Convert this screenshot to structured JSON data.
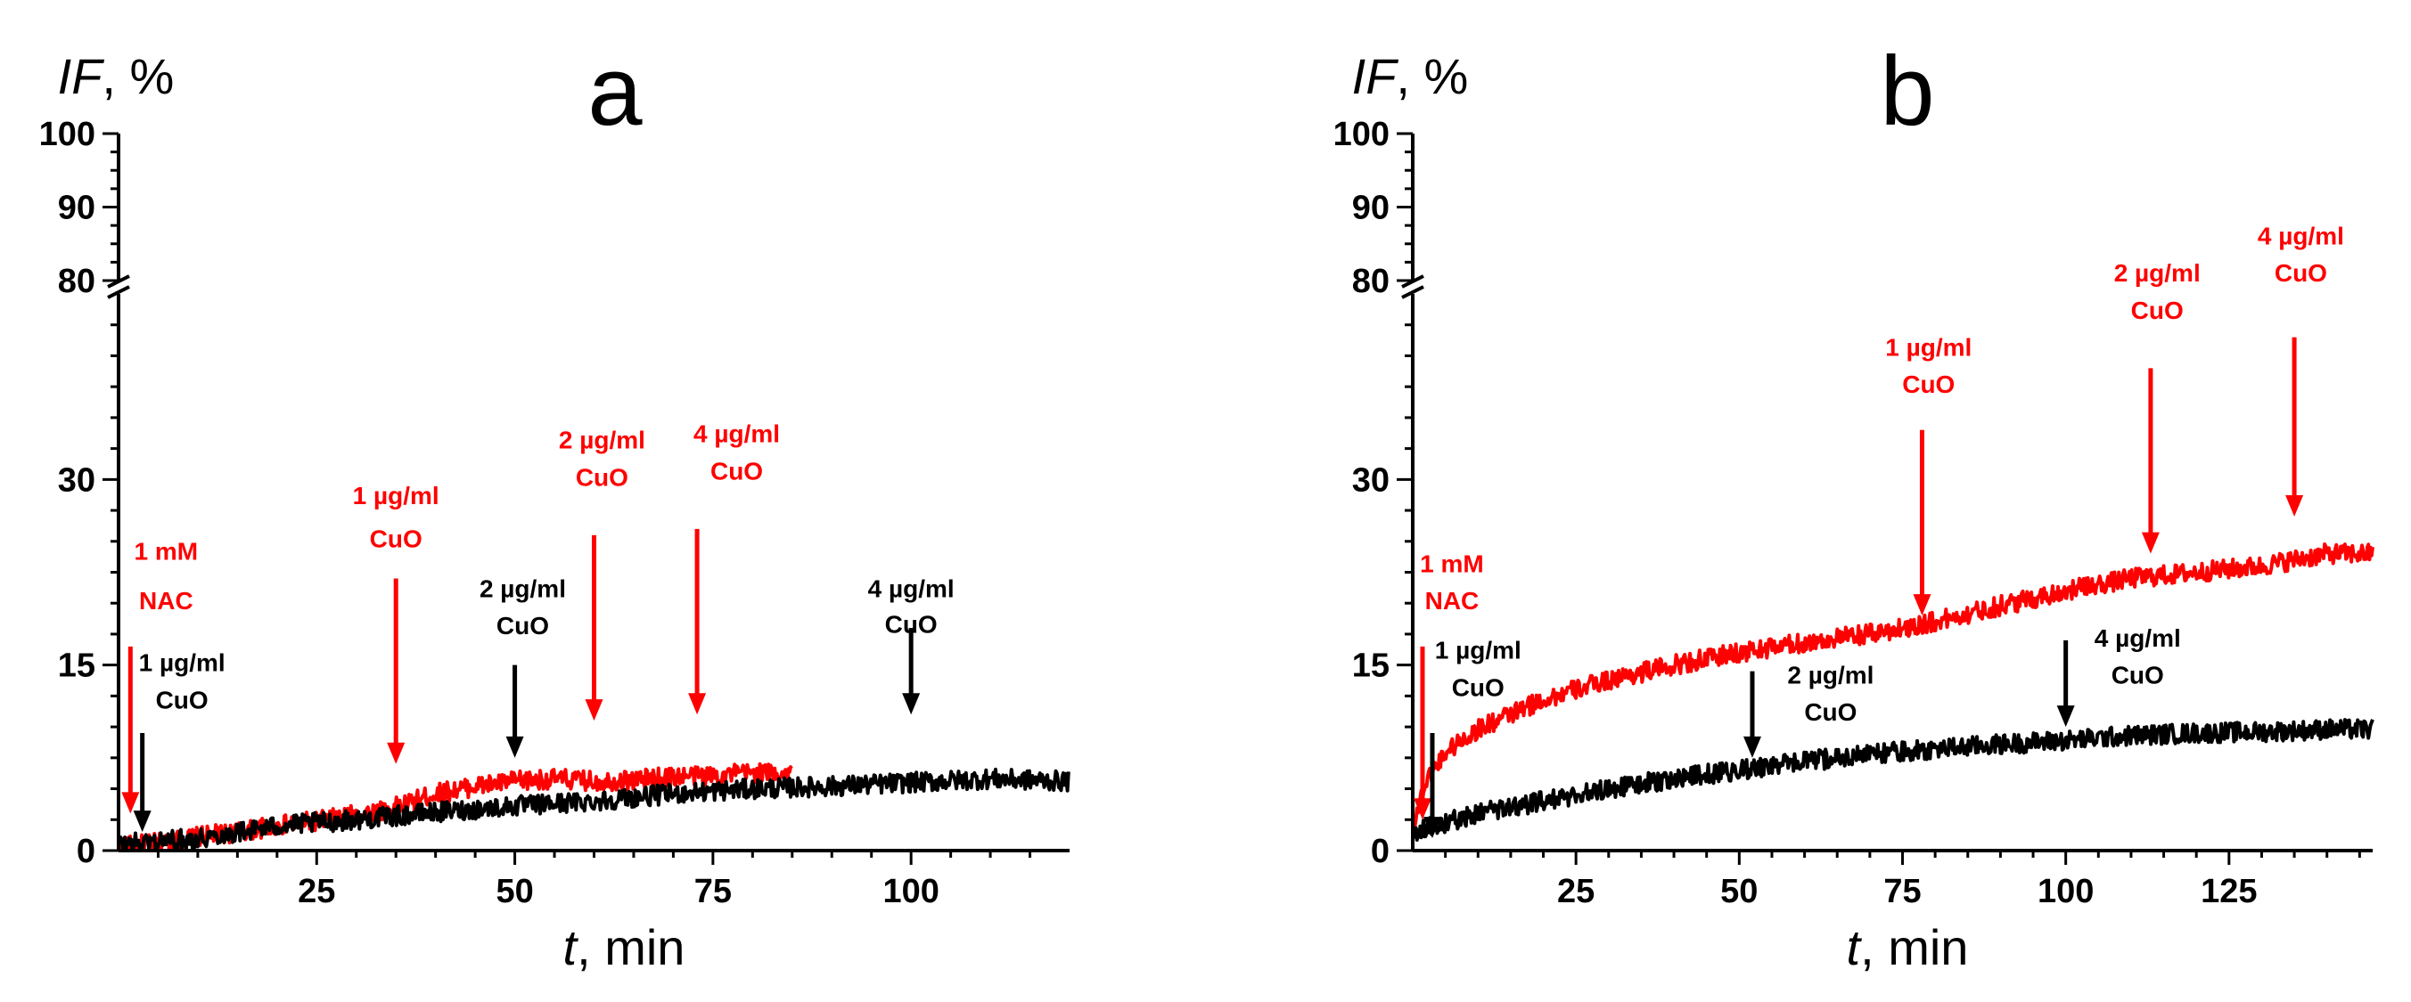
{
  "chart_data": [
    {
      "panel": "a",
      "type": "line",
      "title": "a",
      "xlabel_italic": "t",
      "xlabel_rest": ", min",
      "ylabel_italic": "IF",
      "ylabel_rest": ", %",
      "xlim": [
        0,
        120
      ],
      "ylim_lower": [
        0,
        45
      ],
      "ylim_upper": [
        80,
        100
      ],
      "xticks": [
        25,
        50,
        75,
        100
      ],
      "yticks_lower": [
        0,
        15,
        30
      ],
      "yticks_upper": [
        80,
        90,
        100
      ],
      "axis_break": true,
      "series": [
        {
          "name": "red",
          "color": "#ff0000",
          "x": [
            0,
            5,
            10,
            15,
            20,
            25,
            30,
            35,
            40,
            45,
            50,
            55,
            60,
            65,
            70,
            75,
            80,
            85
          ],
          "y": [
            0.3,
            0.6,
            1.1,
            1.5,
            2.0,
            2.4,
            2.9,
            3.5,
            4.6,
            5.2,
            5.6,
            5.8,
            5.6,
            5.7,
            6.0,
            6.1,
            6.3,
            6.2
          ]
        },
        {
          "name": "black",
          "color": "#000000",
          "x": [
            0,
            10,
            20,
            30,
            40,
            50,
            60,
            70,
            80,
            90,
            100,
            110,
            120
          ],
          "y": [
            0.5,
            1.0,
            2.0,
            2.5,
            3.1,
            3.6,
            4.0,
            4.6,
            5.0,
            5.2,
            5.5,
            5.8,
            5.6
          ]
        }
      ],
      "annotations": [
        {
          "lines": [
            "1 mM",
            "NAC"
          ],
          "color": "#ff0000",
          "x": 1.5,
          "arrow_top": 16.5,
          "arrow_bottom": 3.0,
          "label_y": [
            23.5,
            19.5
          ],
          "label_x": 6
        },
        {
          "lines": [
            "1 µg/ml",
            "CuO"
          ],
          "color": "#000000",
          "x": 3,
          "arrow_top": 9.5,
          "arrow_bottom": 1.5,
          "label_y": [
            14.5,
            11.5
          ],
          "label_x": 8
        },
        {
          "lines": [
            "1 µg/ml",
            "CuO"
          ],
          "color": "#ff0000",
          "x": 35,
          "arrow_top": 22.0,
          "arrow_bottom": 7.0,
          "label_y": [
            28.0,
            24.5
          ],
          "label_x": 35
        },
        {
          "lines": [
            "2 µg/ml",
            "CuO"
          ],
          "color": "#000000",
          "x": 50,
          "arrow_top": 15.0,
          "arrow_bottom": 7.5,
          "label_y": [
            20.5,
            17.5
          ],
          "label_x": 51
        },
        {
          "lines": [
            "2 µg/ml",
            "CuO"
          ],
          "color": "#ff0000",
          "x": 60,
          "arrow_top": 25.5,
          "arrow_bottom": 10.5,
          "label_y": [
            32.5,
            29.5
          ],
          "label_x": 61
        },
        {
          "lines": [
            "4 µg/ml",
            "CuO"
          ],
          "color": "#ff0000",
          "x": 73,
          "arrow_top": 26.0,
          "arrow_bottom": 11.0,
          "label_y": [
            33.0,
            30.0
          ],
          "label_x": 78
        },
        {
          "lines": [
            "4 µg/ml",
            "CuO"
          ],
          "color": "#000000",
          "x": 100,
          "arrow_top": 18.0,
          "arrow_bottom": 11.0,
          "label_y": [
            20.5,
            20.5
          ],
          "label_x": 100
        }
      ]
    },
    {
      "panel": "b",
      "type": "line",
      "title": "b",
      "xlabel_italic": "t",
      "xlabel_rest": ", min",
      "ylabel_italic": "IF",
      "ylabel_rest": ", %",
      "xlim": [
        0,
        147
      ],
      "ylim_lower": [
        0,
        45
      ],
      "ylim_upper": [
        80,
        100
      ],
      "xticks": [
        25,
        50,
        75,
        100,
        125
      ],
      "yticks_lower": [
        0,
        15,
        30
      ],
      "yticks_upper": [
        80,
        90,
        100
      ],
      "axis_break": true,
      "series": [
        {
          "name": "red",
          "color": "#ff0000",
          "x": [
            0,
            2,
            5,
            10,
            15,
            20,
            30,
            40,
            50,
            60,
            70,
            80,
            90,
            100,
            110,
            120,
            130,
            140,
            147
          ],
          "y": [
            2.0,
            5.5,
            8.0,
            9.8,
            11.0,
            12.2,
            13.8,
            15.0,
            16.0,
            16.8,
            17.5,
            18.5,
            19.8,
            21.0,
            22.0,
            22.5,
            23.0,
            24.0,
            24.0
          ]
        },
        {
          "name": "black",
          "color": "#000000",
          "x": [
            0,
            10,
            20,
            30,
            40,
            50,
            60,
            70,
            80,
            90,
            100,
            110,
            120,
            130,
            140,
            147
          ],
          "y": [
            1.5,
            3.0,
            4.0,
            5.0,
            5.8,
            6.5,
            7.2,
            7.8,
            8.2,
            8.6,
            8.9,
            9.3,
            9.5,
            9.6,
            9.8,
            9.8
          ]
        }
      ],
      "annotations": [
        {
          "lines": [
            "1 mM",
            "NAC"
          ],
          "color": "#ff0000",
          "x": 1.5,
          "arrow_top": 16.5,
          "arrow_bottom": 2.5,
          "label_y": [
            22.5,
            19.5
          ],
          "label_x": 6
        },
        {
          "lines": [
            "1 µg/ml",
            "CuO"
          ],
          "color": "#000000",
          "x": 3,
          "arrow_top": 9.5,
          "arrow_bottom": 1.0,
          "label_y": [
            15.5,
            12.5
          ],
          "label_x": 10
        },
        {
          "lines": [
            "2 µg/ml",
            "CuO"
          ],
          "color": "#000000",
          "x": 52,
          "arrow_top": 14.5,
          "arrow_bottom": 7.5,
          "label_y": [
            13.5,
            10.5
          ],
          "label_x": 64
        },
        {
          "lines": [
            "1 µg/ml",
            "CuO"
          ],
          "color": "#ff0000",
          "x": 78,
          "arrow_top": 34.0,
          "arrow_bottom": 19.0,
          "label_y": [
            40.0,
            37.0
          ],
          "label_x": 79
        },
        {
          "lines": [
            "4 µg/ml",
            "CuO"
          ],
          "color": "#000000",
          "x": 100,
          "arrow_top": 17.0,
          "arrow_bottom": 10.0,
          "label_y": [
            16.5,
            13.5
          ],
          "label_x": 111
        },
        {
          "lines": [
            "2 µg/ml",
            "CuO"
          ],
          "color": "#ff0000",
          "x": 113,
          "arrow_top": 39.0,
          "arrow_bottom": 24.0,
          "label_y": [
            46.0,
            43.0
          ],
          "label_x": 114
        },
        {
          "lines": [
            "4 µg/ml",
            "CuO"
          ],
          "color": "#ff0000",
          "x": 135,
          "arrow_top": 41.5,
          "arrow_bottom": 27.0,
          "label_y": [
            49.0,
            46.0
          ],
          "label_x": 136
        }
      ]
    }
  ]
}
